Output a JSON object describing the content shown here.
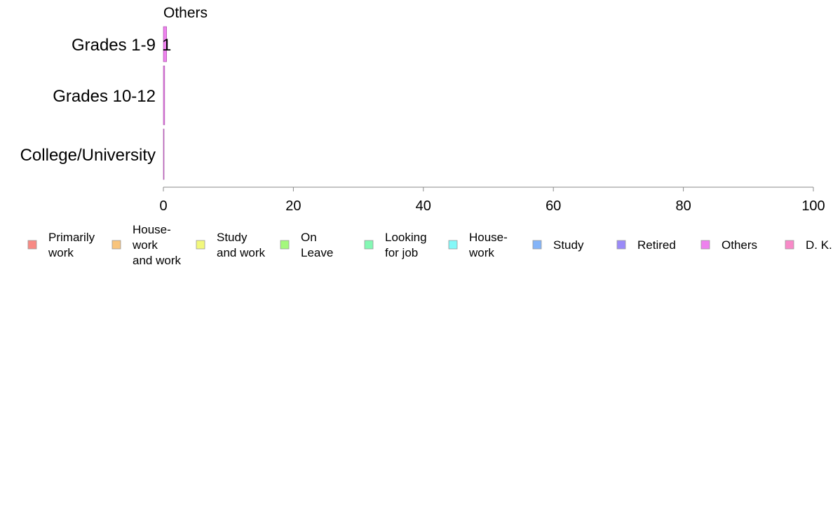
{
  "chart_data": {
    "type": "bar",
    "orientation": "horizontal",
    "stacked": true,
    "panel_title": "Others",
    "categories": [
      "Grades 1-9",
      "Grades 10-12",
      "College/University"
    ],
    "series": [
      {
        "name": "Others",
        "values": [
          0.5,
          0.2,
          0.1
        ],
        "color": "#ee82ee",
        "data_labels": [
          "1",
          "",
          ""
        ]
      }
    ],
    "xlim": [
      0,
      100
    ],
    "xticks": [
      0,
      20,
      40,
      60,
      80,
      100
    ],
    "grid": false,
    "legend_position": "bottom",
    "legend": [
      {
        "label": [
          "Primarily",
          "work"
        ],
        "color": "#f88a84"
      },
      {
        "label": [
          "House-",
          "work",
          "and work"
        ],
        "color": "#f8c47c"
      },
      {
        "label": [
          "Study",
          "and work"
        ],
        "color": "#f2f87c"
      },
      {
        "label": [
          "On",
          "Leave"
        ],
        "color": "#a4f87c"
      },
      {
        "label": [
          "Looking",
          "for job"
        ],
        "color": "#84f8b4"
      },
      {
        "label": [
          "House-",
          "work"
        ],
        "color": "#84f8f8"
      },
      {
        "label": [
          "Study"
        ],
        "color": "#84b4f8"
      },
      {
        "label": [
          "Retired"
        ],
        "color": "#9a8af8"
      },
      {
        "label": [
          "Others"
        ],
        "color": "#ee82ee"
      },
      {
        "label": [
          "D. K."
        ],
        "color": "#f88ac8"
      }
    ]
  }
}
